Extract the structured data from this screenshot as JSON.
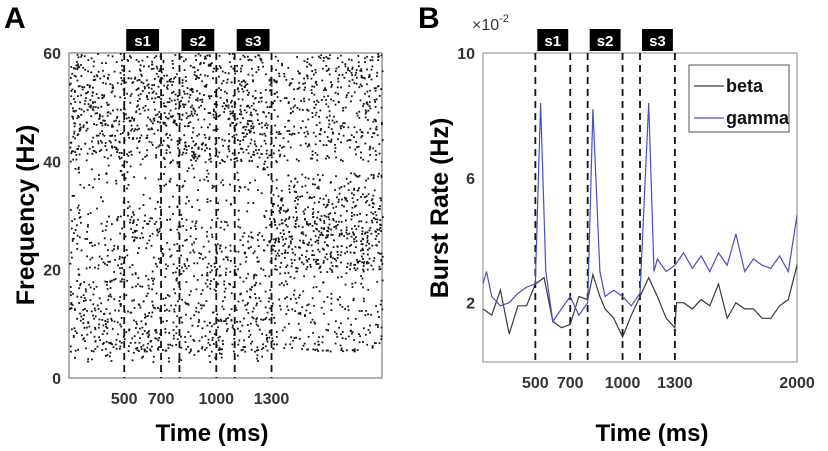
{
  "chart_data": [
    {
      "type": "scatter",
      "panel_label": "A",
      "title": "",
      "xlabel": "Time (ms)",
      "ylabel": "Frequency (Hz)",
      "xlim": [
        200,
        1900
      ],
      "ylim": [
        0,
        60
      ],
      "xticks": [
        500,
        700,
        1000,
        1300
      ],
      "yticks": [
        0,
        20,
        40,
        60
      ],
      "event_lines": [
        500,
        700,
        800,
        1000,
        1100,
        1300
      ],
      "stimuli": [
        {
          "label": "s1",
          "start": 500,
          "end": 700
        },
        {
          "label": "s2",
          "start": 800,
          "end": 1000
        },
        {
          "label": "s3",
          "start": 1100,
          "end": 1300
        }
      ]
    },
    {
      "type": "line",
      "panel_label": "B",
      "title": "",
      "xlabel": "Time (ms)",
      "ylabel": "Burst Rate (Hz)",
      "y_multiplier": "×10",
      "y_exponent": "-2",
      "xlim": [
        200,
        2000
      ],
      "ylim": [
        0.1,
        10
      ],
      "xticks": [
        500,
        700,
        1000,
        1300,
        2000
      ],
      "yticks": [
        2,
        6,
        10
      ],
      "legend_position": "top-right",
      "event_lines": [
        500,
        700,
        800,
        1000,
        1100,
        1300
      ],
      "stimuli": [
        {
          "label": "s1",
          "start": 500,
          "end": 700
        },
        {
          "label": "s2",
          "start": 800,
          "end": 1000
        },
        {
          "label": "s3",
          "start": 1100,
          "end": 1300
        }
      ],
      "series": [
        {
          "name": "beta",
          "color": "#3a3a3a",
          "x": [
            200,
            250,
            300,
            350,
            400,
            450,
            500,
            550,
            600,
            650,
            700,
            750,
            800,
            830,
            870,
            900,
            950,
            1000,
            1050,
            1100,
            1150,
            1200,
            1250,
            1300,
            1310,
            1350,
            1400,
            1450,
            1500,
            1550,
            1600,
            1650,
            1700,
            1750,
            1800,
            1850,
            1900,
            1950,
            2000
          ],
          "y": [
            1.8,
            1.6,
            2.4,
            1.0,
            1.9,
            1.9,
            2.6,
            2.8,
            1.4,
            1.2,
            1.3,
            2.2,
            2.1,
            2.9,
            2.2,
            1.8,
            1.5,
            0.9,
            1.6,
            2.2,
            2.8,
            2.2,
            1.5,
            1.2,
            2.0,
            2.0,
            1.8,
            2.1,
            1.9,
            2.6,
            1.5,
            2.0,
            1.8,
            1.8,
            1.5,
            1.5,
            1.9,
            2.1,
            3.2
          ]
        },
        {
          "name": "gamma",
          "color": "#4a4fc0",
          "x": [
            200,
            220,
            250,
            300,
            350,
            400,
            450,
            500,
            530,
            560,
            600,
            650,
            700,
            750,
            800,
            830,
            870,
            900,
            950,
            1000,
            1050,
            1100,
            1150,
            1180,
            1200,
            1250,
            1300,
            1350,
            1400,
            1450,
            1500,
            1550,
            1600,
            1650,
            1700,
            1750,
            1800,
            1850,
            1900,
            1950,
            2000
          ],
          "y": [
            2.6,
            3.0,
            2.2,
            1.9,
            2.0,
            2.3,
            2.5,
            2.6,
            8.4,
            3.0,
            1.4,
            1.8,
            2.2,
            1.6,
            2.0,
            8.2,
            3.0,
            2.2,
            2.4,
            2.2,
            1.9,
            2.3,
            8.4,
            3.0,
            3.4,
            3.0,
            3.2,
            3.6,
            3.1,
            3.5,
            3.0,
            3.6,
            3.2,
            4.2,
            3.0,
            3.4,
            3.2,
            3.1,
            3.5,
            3.0,
            4.8
          ]
        }
      ]
    }
  ]
}
